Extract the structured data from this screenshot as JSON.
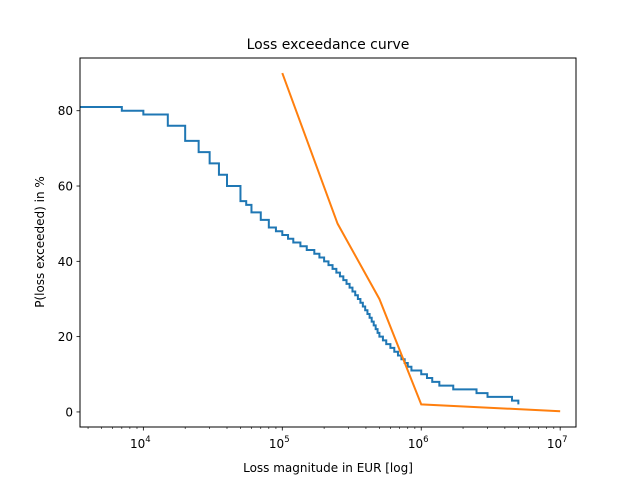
{
  "chart_data": {
    "type": "line",
    "title": "Loss exceedance curve",
    "xlabel": "Loss magnitude in EUR [log]",
    "ylabel": "P(loss exceeded) in %",
    "xscale": "log",
    "xlim": [
      3500,
      13000000
    ],
    "ylim": [
      -4,
      94
    ],
    "grid": false,
    "legend": "none",
    "x_ticks": [
      {
        "value": 10000,
        "base": "10",
        "exp": "4"
      },
      {
        "value": 100000,
        "base": "10",
        "exp": "5"
      },
      {
        "value": 1000000,
        "base": "10",
        "exp": "6"
      },
      {
        "value": 10000000,
        "base": "10",
        "exp": "7"
      }
    ],
    "y_ticks": [
      {
        "value": 0,
        "label": "0"
      },
      {
        "value": 20,
        "label": "20"
      },
      {
        "value": 40,
        "label": "40"
      },
      {
        "value": 60,
        "label": "60"
      },
      {
        "value": 80,
        "label": "80"
      }
    ],
    "series": [
      {
        "color": "#1f77b4",
        "step": true,
        "x": [
          3500,
          5000,
          7000,
          10000,
          15000,
          20000,
          25000,
          30000,
          35000,
          40000,
          50000,
          55000,
          60000,
          70000,
          80000,
          90000,
          100000,
          110000,
          120000,
          135000,
          150000,
          170000,
          185000,
          200000,
          215000,
          230000,
          245000,
          260000,
          275000,
          290000,
          305000,
          320000,
          335000,
          350000,
          365000,
          380000,
          395000,
          410000,
          425000,
          440000,
          455000,
          470000,
          485000,
          500000,
          530000,
          560000,
          600000,
          640000,
          680000,
          720000,
          760000,
          800000,
          850000,
          900000,
          950000,
          1000000,
          1100000,
          1200000,
          1350000,
          1500000,
          1700000,
          2000000,
          2500000,
          3000000,
          4000000,
          4500000,
          5000000
        ],
        "y": [
          81,
          81,
          80,
          79,
          76,
          72,
          69,
          66,
          63,
          60,
          56,
          55,
          53,
          51,
          49,
          48,
          47,
          46,
          45,
          44,
          43,
          42,
          41,
          40,
          39,
          38,
          37,
          36,
          35,
          34,
          33,
          32,
          31,
          30,
          29,
          28,
          27,
          26,
          25,
          24,
          23,
          22,
          21,
          20,
          19,
          18,
          17,
          16,
          15,
          14,
          13,
          12,
          11,
          11,
          11,
          10,
          9,
          8,
          7,
          7,
          6,
          6,
          5,
          4,
          4,
          3,
          2
        ]
      },
      {
        "color": "#ff7f0e",
        "step": false,
        "x": [
          100000,
          250000,
          500000,
          1000000,
          10000000
        ],
        "y": [
          90,
          50,
          30,
          2,
          0.2
        ]
      }
    ]
  }
}
